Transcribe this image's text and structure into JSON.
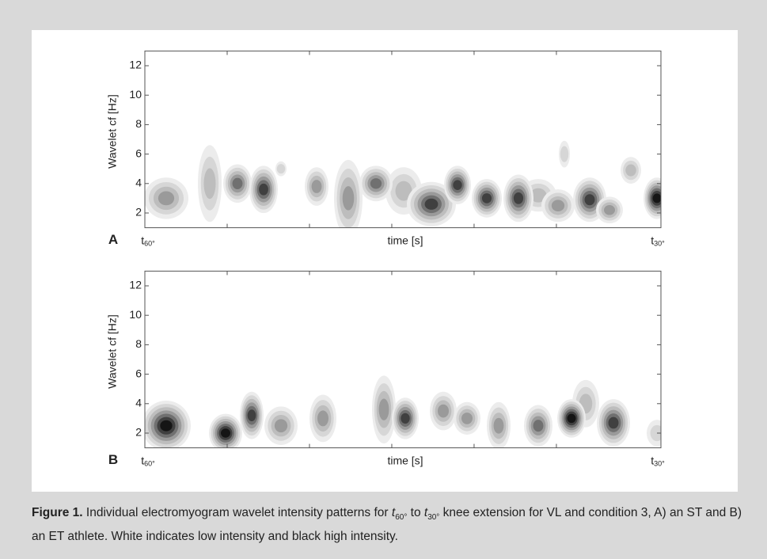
{
  "chart_data": [
    {
      "type": "contour",
      "panel": "A",
      "ylabel": "Wavelet cf [Hz]",
      "xlabel": "time [s]",
      "x_start": {
        "t": "t",
        "sub": "60°"
      },
      "x_end": {
        "t": "t",
        "sub": "30°"
      },
      "ylim": [
        1,
        13
      ],
      "yticks": [
        2,
        4,
        6,
        8,
        10,
        12
      ]
    },
    {
      "type": "contour",
      "panel": "B",
      "ylabel": "Wavelet cf [Hz]",
      "xlabel": "time [s]",
      "x_start": {
        "t": "t",
        "sub": "60°"
      },
      "x_end": {
        "t": "t",
        "sub": "30°"
      },
      "ylim": [
        1,
        13
      ],
      "yticks": [
        2,
        4,
        6,
        8,
        10,
        12
      ]
    }
  ],
  "caption": {
    "label": "Figure 1.",
    "text_1": "Individual electromyogram wavelet intensity patterns for ",
    "t1": "t",
    "t1_sub": "60°",
    "text_2": " to ",
    "t2": "t",
    "t2_sub": "30°",
    "text_3": " knee extension for VL and condition 3, A) an ST and B) an ET athlete. White indicates low intensity and black high intensity."
  }
}
